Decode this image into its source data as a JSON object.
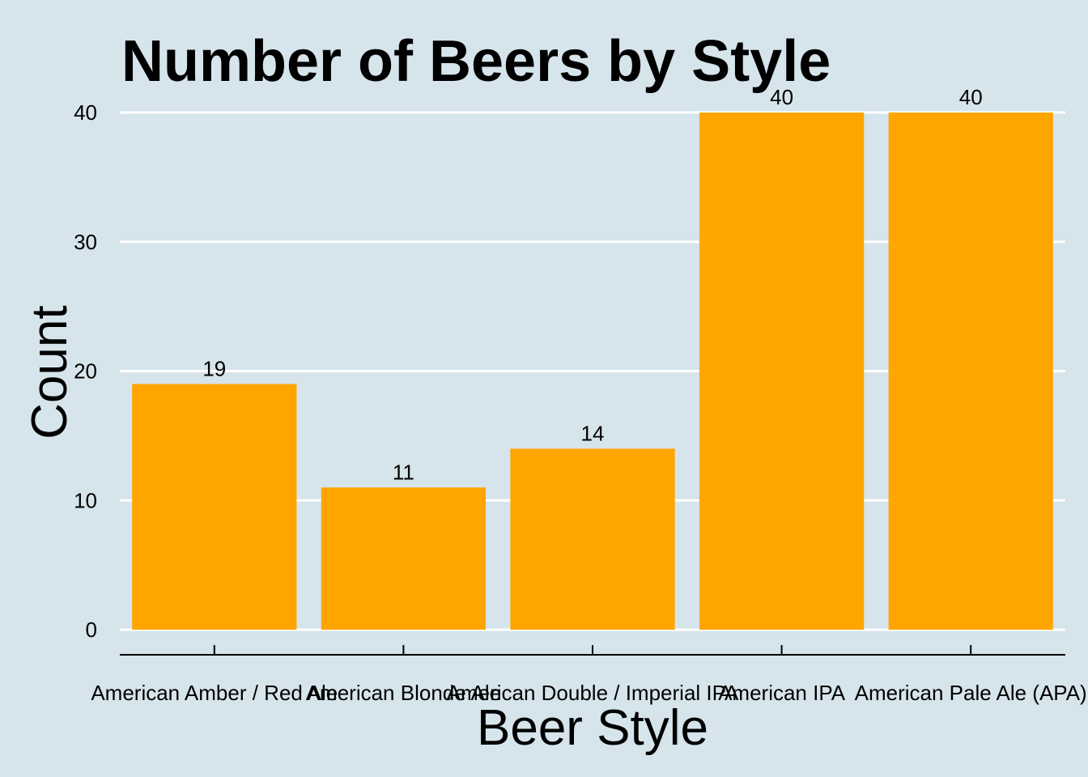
{
  "chart_data": {
    "type": "bar",
    "title": "Number of Beers by Style",
    "xlabel": "Beer Style",
    "ylabel": "Count",
    "categories": [
      "American Amber / Red Ale",
      "American Blonde Ale",
      "American Double / Imperial IPA",
      "American IPA",
      "American Pale Ale (APA)"
    ],
    "values": [
      19,
      11,
      14,
      40,
      40
    ],
    "data_labels": [
      "19",
      "11",
      "14",
      "40",
      "40"
    ],
    "ylim": [
      0,
      40
    ],
    "yticks": [
      0,
      10,
      20,
      30,
      40
    ],
    "ytick_labels": [
      "0",
      "10",
      "20",
      "30",
      "40"
    ],
    "grid": "horizontal",
    "legend": "none",
    "colors": {
      "bar": "#ffa500",
      "background": "#d6e4eb",
      "grid": "#ffffff",
      "text": "#000000"
    }
  }
}
